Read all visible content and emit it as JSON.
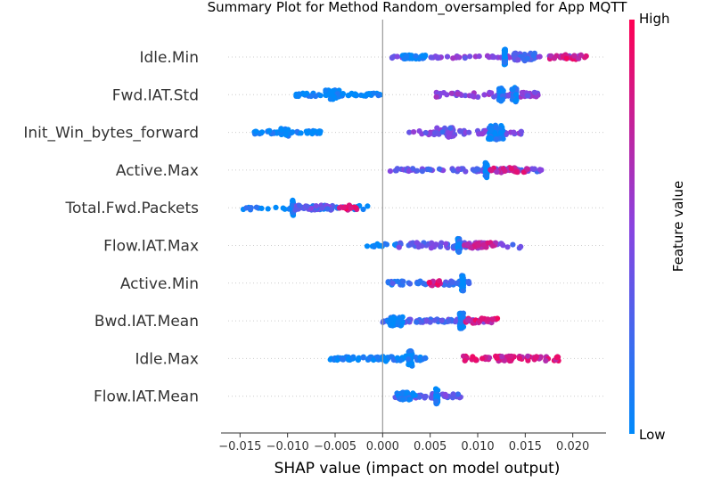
{
  "chart_data": {
    "type": "scatter",
    "subtype": "shap-beeswarm",
    "title": "Summary Plot for Method Random_oversampled for App MQTT",
    "xlabel": "SHAP value (impact on model output)",
    "xlim": [
      -0.017,
      0.0235
    ],
    "x_ticks": [
      -0.015,
      -0.01,
      -0.005,
      0.0,
      0.005,
      0.01,
      0.015,
      0.02
    ],
    "x_tick_labels": [
      "−0.015",
      "−0.010",
      "−0.005",
      "0.000",
      "0.005",
      "0.010",
      "0.015",
      "0.020"
    ],
    "zero_line": 0.0,
    "colorbar": {
      "label": "Feature value",
      "high_label": "High",
      "low_label": "Low",
      "low_color": "#008afb",
      "mid_color": "#8a43e0",
      "high_color": "#ff0052"
    },
    "features": [
      {
        "name": "Idle.Min",
        "clusters": [
          {
            "from": 0.001,
            "to": 0.0215,
            "count": 70,
            "spread": 0.15,
            "value": 0.45
          },
          {
            "from": 0.002,
            "to": 0.0045,
            "count": 35,
            "spread": 0.25,
            "value": 0.0
          },
          {
            "from": 0.0128,
            "to": 0.0129,
            "count": 45,
            "spread": 0.95,
            "value": 0.05
          },
          {
            "from": 0.0135,
            "to": 0.016,
            "count": 40,
            "spread": 0.5,
            "value": 0.3
          },
          {
            "from": 0.0175,
            "to": 0.0215,
            "count": 20,
            "spread": 0.3,
            "value": 0.8
          }
        ]
      },
      {
        "name": "Fwd.IAT.Std",
        "clusters": [
          {
            "from": -0.0092,
            "to": -0.0002,
            "count": 55,
            "spread": 0.2,
            "value": 0.0
          },
          {
            "from": -0.006,
            "to": -0.0045,
            "count": 30,
            "spread": 0.6,
            "value": 0.0
          },
          {
            "from": 0.0055,
            "to": 0.0165,
            "count": 60,
            "spread": 0.3,
            "value": 0.5
          },
          {
            "from": 0.0122,
            "to": 0.0127,
            "count": 40,
            "spread": 0.8,
            "value": 0.1
          },
          {
            "from": 0.0136,
            "to": 0.0141,
            "count": 35,
            "spread": 0.9,
            "value": 0.1
          }
        ]
      },
      {
        "name": "Init_Win_bytes_forward",
        "clusters": [
          {
            "from": -0.0135,
            "to": -0.0065,
            "count": 45,
            "spread": 0.2,
            "value": 0.0
          },
          {
            "from": -0.0108,
            "to": -0.0098,
            "count": 20,
            "spread": 0.5,
            "value": 0.0
          },
          {
            "from": 0.0028,
            "to": 0.0148,
            "count": 55,
            "spread": 0.3,
            "value": 0.45
          },
          {
            "from": 0.0055,
            "to": 0.0075,
            "count": 30,
            "spread": 0.6,
            "value": 0.35
          },
          {
            "from": 0.0111,
            "to": 0.0127,
            "count": 60,
            "spread": 0.95,
            "value": 0.05
          }
        ]
      },
      {
        "name": "Active.Max",
        "clusters": [
          {
            "from": 0.0,
            "to": 0.0172,
            "count": 75,
            "spread": 0.2,
            "value": 0.35
          },
          {
            "from": 0.0108,
            "to": 0.011,
            "count": 40,
            "spread": 0.95,
            "value": 0.05
          },
          {
            "from": 0.0112,
            "to": 0.0155,
            "count": 30,
            "spread": 0.3,
            "value": 0.75
          }
        ]
      },
      {
        "name": "Total.Fwd.Packets",
        "clusters": [
          {
            "from": -0.0152,
            "to": -0.0015,
            "count": 45,
            "spread": 0.25,
            "value": 0.05
          },
          {
            "from": -0.0095,
            "to": -0.0094,
            "count": 45,
            "spread": 0.95,
            "value": 0.0
          },
          {
            "from": -0.0092,
            "to": -0.0052,
            "count": 35,
            "spread": 0.3,
            "value": 0.35
          },
          {
            "from": -0.0048,
            "to": -0.0025,
            "count": 12,
            "spread": 0.3,
            "value": 0.85
          }
        ]
      },
      {
        "name": "Flow.IAT.Max",
        "clusters": [
          {
            "from": -0.0018,
            "to": 0.0015,
            "count": 14,
            "spread": 0.2,
            "value": 0.0
          },
          {
            "from": 0.0015,
            "to": 0.0148,
            "count": 55,
            "spread": 0.35,
            "value": 0.35
          },
          {
            "from": 0.0079,
            "to": 0.0081,
            "count": 45,
            "spread": 0.95,
            "value": 0.05
          },
          {
            "from": 0.0085,
            "to": 0.012,
            "count": 35,
            "spread": 0.35,
            "value": 0.7
          }
        ]
      },
      {
        "name": "Active.Min",
        "clusters": [
          {
            "from": 0.0003,
            "to": 0.0092,
            "count": 55,
            "spread": 0.25,
            "value": 0.2
          },
          {
            "from": 0.0083,
            "to": 0.0085,
            "count": 40,
            "spread": 0.95,
            "value": 0.02
          },
          {
            "from": 0.0048,
            "to": 0.0062,
            "count": 12,
            "spread": 0.3,
            "value": 0.85
          }
        ]
      },
      {
        "name": "Bwd.IAT.Mean",
        "clusters": [
          {
            "from": -0.0002,
            "to": 0.0115,
            "count": 70,
            "spread": 0.2,
            "value": 0.3
          },
          {
            "from": 0.0005,
            "to": 0.0022,
            "count": 35,
            "spread": 0.6,
            "value": 0.0
          },
          {
            "from": 0.0081,
            "to": 0.0085,
            "count": 45,
            "spread": 0.95,
            "value": 0.05
          },
          {
            "from": 0.0086,
            "to": 0.0122,
            "count": 25,
            "spread": 0.3,
            "value": 0.8
          }
        ]
      },
      {
        "name": "Idle.Max",
        "clusters": [
          {
            "from": -0.0055,
            "to": 0.0028,
            "count": 60,
            "spread": 0.2,
            "value": 0.0
          },
          {
            "from": 0.0027,
            "to": 0.0031,
            "count": 45,
            "spread": 0.95,
            "value": 0.0
          },
          {
            "from": -0.0008,
            "to": 0.0045,
            "count": 25,
            "spread": 0.35,
            "value": 0.05
          },
          {
            "from": 0.0085,
            "to": 0.0185,
            "count": 70,
            "spread": 0.3,
            "value": 0.8
          }
        ]
      },
      {
        "name": "Flow.IAT.Mean",
        "clusters": [
          {
            "from": 0.0013,
            "to": 0.0085,
            "count": 55,
            "spread": 0.3,
            "value": 0.35
          },
          {
            "from": 0.0056,
            "to": 0.0058,
            "count": 45,
            "spread": 0.95,
            "value": 0.02
          },
          {
            "from": 0.0015,
            "to": 0.0035,
            "count": 25,
            "spread": 0.5,
            "value": 0.05
          }
        ]
      }
    ]
  }
}
